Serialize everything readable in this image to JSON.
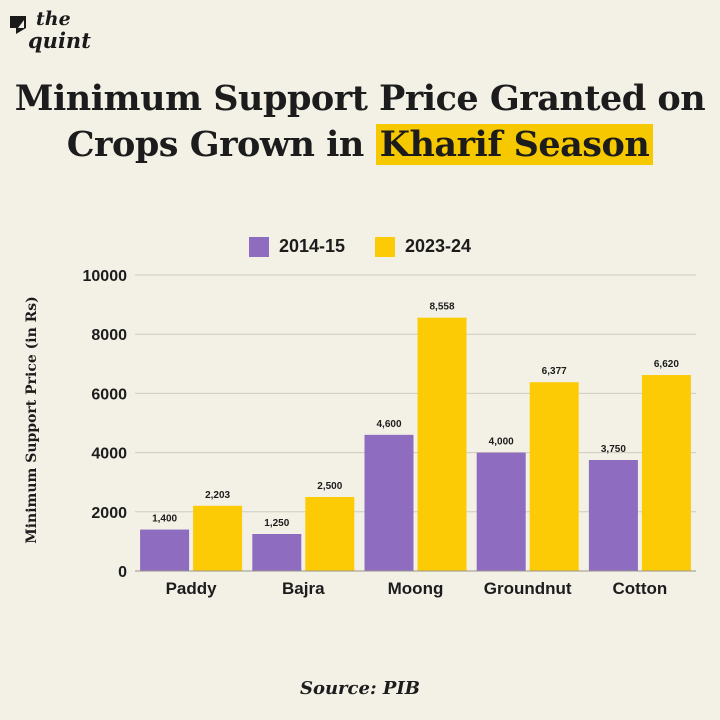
{
  "brand": {
    "line1": "the",
    "line2": "quint"
  },
  "title": {
    "line1": "Minimum Support Price Granted on",
    "line2_prefix": "Crops Grown in ",
    "line2_highlight": "Kharif Season"
  },
  "source": "Source: PIB",
  "colors": {
    "background": "#f3f0e6",
    "series_2014": "#8e6cc0",
    "series_2023": "#fccb05",
    "highlight": "#f6c800",
    "grid": "#cfcac0",
    "text": "#1c1c1c"
  },
  "chart_data": {
    "type": "bar",
    "categories": [
      "Paddy",
      "Bajra",
      "Moong",
      "Groundnut",
      "Cotton"
    ],
    "series": [
      {
        "name": "2014-15",
        "values": [
          1400,
          1250,
          4600,
          4000,
          3750
        ],
        "labels": [
          "1,400",
          "1,250",
          "4,600",
          "4,000",
          "3,750"
        ]
      },
      {
        "name": "2023-24",
        "values": [
          2203,
          2500,
          8558,
          6377,
          6620
        ],
        "labels": [
          "2,203",
          "2,500",
          "8,558",
          "6,377",
          "6,620"
        ]
      }
    ],
    "ylabel": "Minimum Support Price (in Rs)",
    "xlabel": "",
    "ylim": [
      0,
      10000
    ],
    "yticks": [
      0,
      2000,
      4000,
      6000,
      8000,
      10000
    ],
    "grid": true,
    "legend_position": "top-center"
  }
}
